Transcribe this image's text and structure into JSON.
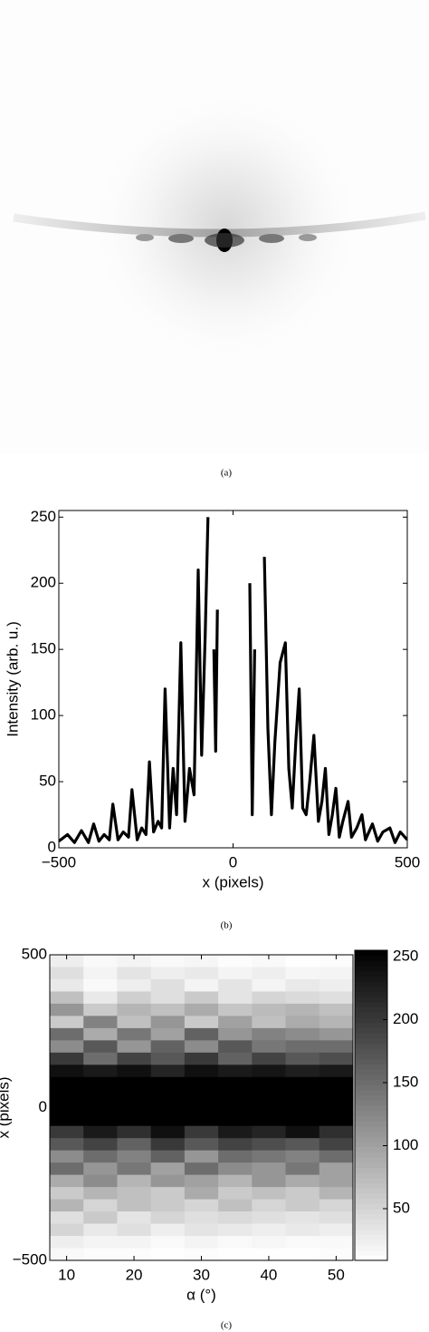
{
  "chart_data": [
    {
      "type": "image",
      "caption": "(a)"
    },
    {
      "type": "line",
      "caption": "(b)",
      "xlabel": "x (pixels)",
      "ylabel": "Intensity (arb. u.)",
      "xlim": [
        -500,
        500
      ],
      "ylim": [
        0,
        255
      ],
      "xticks": [
        {
          "value": -500,
          "label": "−500"
        },
        0,
        500
      ],
      "yticks": [
        0,
        50,
        100,
        150,
        200,
        250
      ],
      "color": "#000000",
      "x": [
        -500,
        -475,
        -455,
        -435,
        -415,
        -400,
        -385,
        -370,
        -355,
        -345,
        -330,
        -315,
        -300,
        -290,
        -275,
        -262,
        -250,
        -240,
        -228,
        -215,
        -205,
        -195,
        -182,
        -172,
        -162,
        -150,
        -138,
        -125,
        -112,
        -100,
        -90,
        -80,
        -72,
        -67,
        -60,
        -55,
        -50,
        -45,
        -40,
        45,
        48,
        55,
        62,
        70,
        80,
        90,
        100,
        110,
        120,
        135,
        150,
        160,
        170,
        180,
        190,
        200,
        210,
        220,
        232,
        245,
        255,
        265,
        275,
        285,
        295,
        305,
        315,
        330,
        340,
        355,
        370,
        380,
        400,
        415,
        430,
        450,
        465,
        480,
        500
      ],
      "values": [
        5,
        10,
        4,
        13,
        4,
        18,
        5,
        10,
        6,
        33,
        6,
        12,
        8,
        44,
        6,
        15,
        10,
        65,
        12,
        20,
        15,
        120,
        15,
        60,
        25,
        155,
        20,
        60,
        40,
        210,
        70,
        160,
        250,
        null,
        null,
        150,
        73,
        180,
        null,
        null,
        200,
        25,
        150,
        null,
        null,
        220,
        90,
        25,
        80,
        140,
        155,
        60,
        30,
        80,
        120,
        30,
        25,
        50,
        85,
        20,
        35,
        60,
        10,
        25,
        45,
        8,
        20,
        35,
        8,
        15,
        25,
        6,
        18,
        5,
        12,
        15,
        4,
        12,
        6
      ]
    },
    {
      "type": "heatmap",
      "caption": "(c)",
      "xlabel": "α (°)",
      "ylabel": "x (pixels)",
      "xlim": [
        7.5,
        52.5
      ],
      "ylim": [
        -500,
        500
      ],
      "xticks": [
        10,
        20,
        30,
        40,
        50
      ],
      "yticks": [
        {
          "value": -500,
          "label": "−500"
        },
        0,
        500
      ],
      "x": [
        10,
        15,
        20,
        25,
        30,
        35,
        40,
        45,
        50
      ],
      "y": [
        480,
        440,
        400,
        360,
        320,
        280,
        240,
        200,
        160,
        120,
        80,
        40,
        0,
        -40,
        -80,
        -120,
        -160,
        -200,
        -240,
        -280,
        -320,
        -360,
        -400,
        -440,
        -480
      ],
      "z": [
        [
          25,
          15,
          20,
          15,
          18,
          12,
          15,
          10,
          12
        ],
        [
          40,
          20,
          35,
          25,
          30,
          20,
          25,
          18,
          20
        ],
        [
          30,
          15,
          25,
          40,
          20,
          35,
          20,
          30,
          25
        ],
        [
          70,
          30,
          55,
          40,
          60,
          35,
          50,
          45,
          40
        ],
        [
          110,
          60,
          80,
          70,
          90,
          65,
          75,
          80,
          70
        ],
        [
          60,
          130,
          70,
          110,
          60,
          100,
          70,
          90,
          80
        ],
        [
          150,
          90,
          140,
          100,
          160,
          110,
          130,
          120,
          110
        ],
        [
          120,
          170,
          110,
          160,
          120,
          170,
          140,
          150,
          150
        ],
        [
          200,
          150,
          190,
          170,
          200,
          160,
          190,
          170,
          180
        ],
        [
          240,
          230,
          240,
          220,
          240,
          230,
          235,
          225,
          230
        ],
        [
          255,
          255,
          255,
          255,
          255,
          255,
          255,
          255,
          255
        ],
        [
          255,
          255,
          255,
          255,
          255,
          255,
          255,
          255,
          255
        ],
        [
          255,
          255,
          255,
          255,
          255,
          255,
          255,
          255,
          255
        ],
        [
          255,
          255,
          255,
          255,
          255,
          255,
          255,
          255,
          255
        ],
        [
          200,
          230,
          210,
          240,
          200,
          230,
          220,
          240,
          210
        ],
        [
          170,
          190,
          160,
          200,
          170,
          190,
          180,
          170,
          190
        ],
        [
          120,
          150,
          130,
          160,
          110,
          150,
          140,
          130,
          150
        ],
        [
          150,
          110,
          140,
          100,
          150,
          120,
          110,
          140,
          100
        ],
        [
          90,
          120,
          80,
          110,
          100,
          80,
          110,
          90,
          100
        ],
        [
          60,
          80,
          70,
          60,
          90,
          60,
          70,
          60,
          80
        ],
        [
          80,
          50,
          70,
          60,
          50,
          70,
          50,
          60,
          50
        ],
        [
          40,
          60,
          35,
          50,
          40,
          45,
          40,
          35,
          40
        ],
        [
          50,
          30,
          40,
          25,
          35,
          30,
          25,
          30,
          25
        ],
        [
          25,
          20,
          20,
          15,
          20,
          15,
          18,
          15,
          15
        ],
        [
          15,
          12,
          12,
          10,
          12,
          10,
          10,
          10,
          12
        ]
      ],
      "clim": [
        9,
        255
      ],
      "cticks": [
        50,
        100,
        150,
        200,
        250
      ]
    }
  ]
}
